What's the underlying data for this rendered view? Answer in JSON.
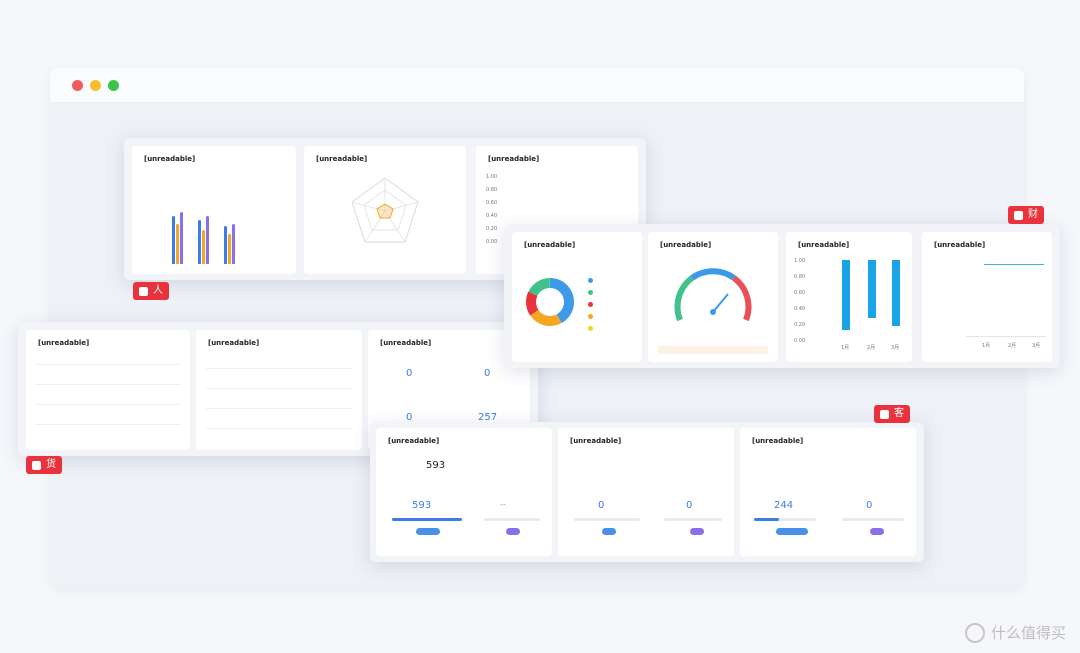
{
  "panel_people": {
    "card1_title": "[unreadable]",
    "card2_title": "[unreadable]",
    "card3_title": "[unreadable]",
    "card3_ticks": [
      "1.00",
      "0.80",
      "0.60",
      "0.40",
      "0.20",
      "0.00"
    ],
    "tag": "人"
  },
  "panel_finance": {
    "card1_title": "[unreadable]",
    "card2_title": "[unreadable]",
    "card3_title": "[unreadable]",
    "card4_title": "[unreadable]",
    "card3_ticks": [
      "1.00",
      "0.80",
      "0.60",
      "0.40",
      "0.20",
      "0.00"
    ],
    "card3_xlabels": [
      "1月",
      "2月",
      "3月"
    ],
    "card4_xlabels": [
      "1月",
      "2月",
      "3月"
    ],
    "tag": "财"
  },
  "panel_goods": {
    "card1_title": "[unreadable]",
    "card2_title": "[unreadable]",
    "card3_title": "[unreadable]",
    "stats": [
      "0",
      "0",
      "0",
      "257"
    ],
    "tag": "货"
  },
  "panel_customers": {
    "card1_title": "[unreadable]",
    "card1_total": "593",
    "card1_left_value": "593",
    "card1_right_value": "--",
    "card2_title": "[unreadable]",
    "card2_left_value": "0",
    "card2_right_value": "0",
    "card3_title": "[unreadable]",
    "card3_left_value": "244",
    "card3_right_value": "0",
    "tag": "客"
  },
  "watermark": "什么值得买",
  "colors": {
    "tag_red": "#e8323c",
    "blue": "#3d7ce6",
    "orange": "#f5a623",
    "purple": "#8b6fe8",
    "bar_blue": "#1aa4e8"
  }
}
